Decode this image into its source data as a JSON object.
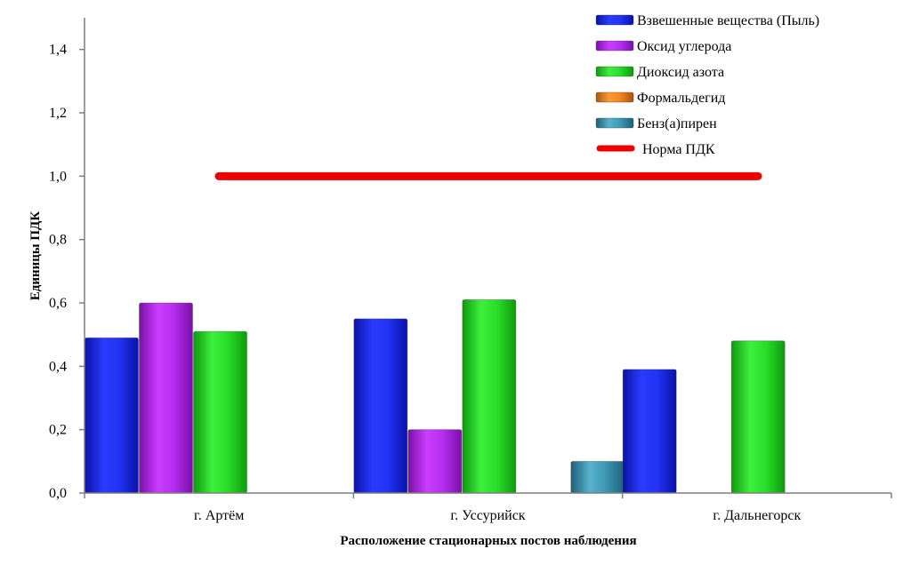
{
  "chart_data": {
    "type": "bar",
    "title": "",
    "xlabel": "Расположение стационарных постов наблюдения",
    "ylabel": "Единицы ПДК",
    "ylim": [
      0,
      1.5
    ],
    "yticks": [
      "0,0",
      "0,2",
      "0,4",
      "0,6",
      "0,8",
      "1,0",
      "1,2",
      "1,4"
    ],
    "ytick_values": [
      0,
      0.2,
      0.4,
      0.6,
      0.8,
      1.0,
      1.2,
      1.4
    ],
    "categories": [
      "г. Артём",
      "г. Уссурийск",
      "г. Дальнегорск"
    ],
    "series": [
      {
        "name": "Взвешенные вещества (Пыль)",
        "color": "#1f2ee8",
        "values": [
          0.49,
          0.55,
          0.39
        ]
      },
      {
        "name": "Оксид углерода",
        "color": "#b326e6",
        "values": [
          0.6,
          0.2,
          0
        ]
      },
      {
        "name": "Диоксид азота",
        "color": "#1ed21e",
        "values": [
          0.51,
          0.61,
          0.48
        ]
      },
      {
        "name": "Формальдегид",
        "color": "#e07b16",
        "values": [
          0,
          0,
          0
        ]
      },
      {
        "name": "Бенз(а)пирен",
        "color": "#3a8ea8",
        "values": [
          0,
          0.1,
          0
        ]
      }
    ],
    "reference_line": {
      "name": "Норма ПДК",
      "value": 1.0,
      "color": "#ee0000"
    },
    "grid": false,
    "legend": "top-right"
  }
}
